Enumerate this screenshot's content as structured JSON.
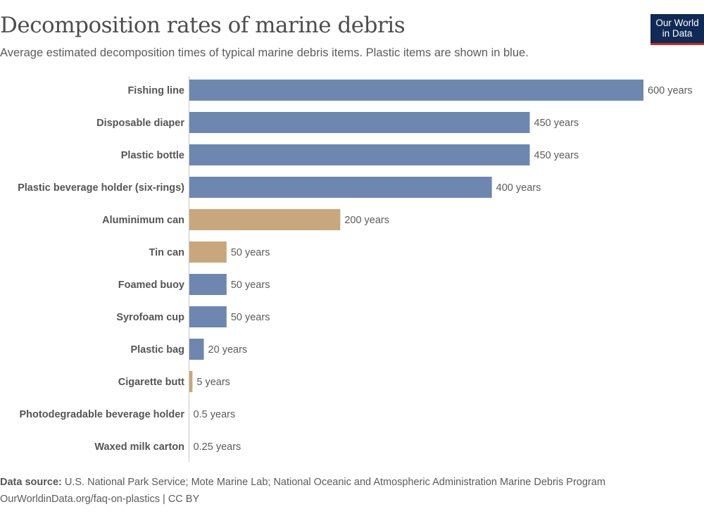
{
  "header": {
    "title": "Decomposition rates of marine debris",
    "subtitle": "Average estimated decomposition times of typical marine debris items. Plastic items are shown in blue."
  },
  "logo": {
    "line1": "Our World",
    "line2": "in Data"
  },
  "footer": {
    "source_label": "Data source:",
    "source_text": " U.S. National Park Service; Mote Marine Lab; National Oceanic and Atmospheric Administration Marine Debris Program",
    "url_license": "OurWorldinData.org/faq-on-plastics | CC BY"
  },
  "colors": {
    "plastic": "#6d87b1",
    "other": "#c9a77c"
  },
  "chart_data": {
    "type": "bar",
    "orientation": "horizontal",
    "categories": [
      "Fishing line",
      "Disposable diaper",
      "Plastic bottle",
      "Plastic beverage holder (six-rings)",
      "Aluminimum can",
      "Tin can",
      "Foamed buoy",
      "Syrofoam cup",
      "Plastic bag",
      "Cigarette butt",
      "Photodegradable beverage holder",
      "Waxed milk carton"
    ],
    "values": [
      600,
      450,
      450,
      400,
      200,
      50,
      50,
      50,
      20,
      5,
      0.5,
      0.25
    ],
    "labels": [
      "600 years",
      "450 years",
      "450 years",
      "400 years",
      "200 years",
      "50 years",
      "50 years",
      "50 years",
      "20 years",
      "5 years",
      "0.5 years",
      "0.25 years"
    ],
    "plastic": [
      true,
      true,
      true,
      true,
      false,
      false,
      true,
      true,
      true,
      false,
      true,
      false
    ],
    "unit": "years",
    "xlim": [
      0,
      600
    ],
    "grid": false
  }
}
